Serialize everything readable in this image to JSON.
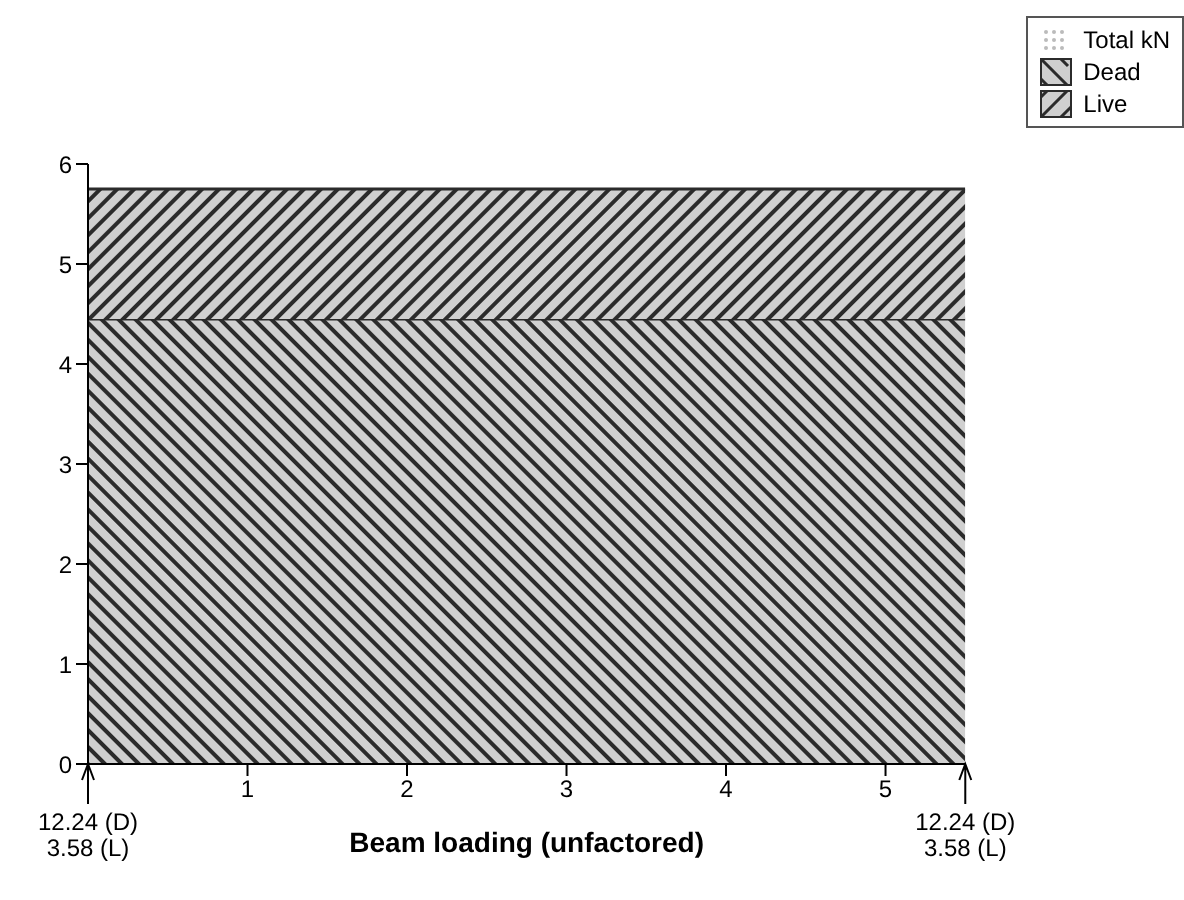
{
  "chart_data": {
    "type": "area",
    "xlabel": "Beam loading (unfactored)",
    "legend_title": "Total kN",
    "legend": "top right",
    "stacked": true,
    "x": [
      0,
      5.5
    ],
    "series": [
      {
        "name": "Dead",
        "color": "#2b2b2b",
        "values": [
          4.45,
          4.45
        ]
      },
      {
        "name": "Live",
        "color": "#2b2b2b",
        "values": [
          1.3,
          1.3
        ]
      }
    ],
    "xlim": [
      0,
      5.5
    ],
    "xticks": [
      1,
      2,
      3,
      4,
      5
    ],
    "ylim": [
      0,
      6
    ],
    "yticks": [
      0,
      1,
      2,
      3,
      4,
      5,
      6
    ],
    "grid": false,
    "annotations": [
      {
        "text": "12.24 (D)\n3.58 (L)",
        "x": 0,
        "y": 0
      },
      {
        "text": "12.24 (D)\n3.58 (L)",
        "x": 5.5,
        "y": 0
      }
    ]
  }
}
